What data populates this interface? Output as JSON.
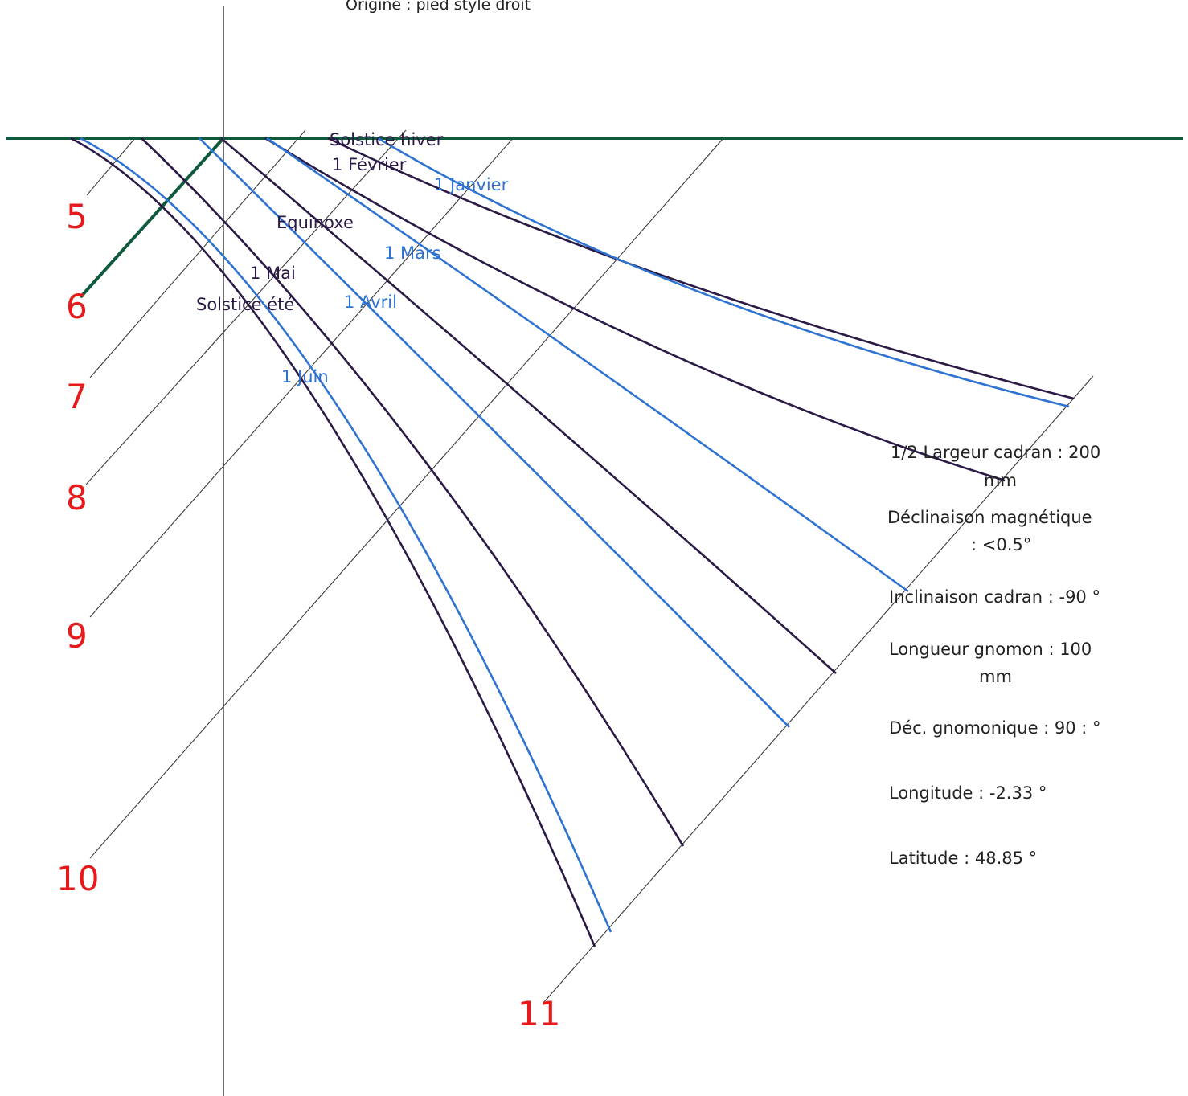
{
  "origin_note": "Origine : pied style droit",
  "colors": {
    "hour_numbers": "#e8191b",
    "hour_lines": "#3a3a3a",
    "style": "#0f5a3c",
    "curve_dark": "#2a1a45",
    "curve_blue": "#2f73d2"
  },
  "hour_numbers": [
    "5",
    "6",
    "7",
    "8",
    "9",
    "10",
    "11"
  ],
  "curve_labels": {
    "solstice_hiver": "Solstice hiver",
    "fevrier": "1 Février",
    "janvier": "1 Janvier",
    "equinoxe": "Equinoxe",
    "mars": "1 Mars",
    "mai": "1 Mai",
    "avril": "1 Avril",
    "solstice_ete": "Solstice été",
    "juin": "1 Juin"
  },
  "info": {
    "half_width_line1": "1/2 Largeur cadran : 200",
    "half_width_line2": "mm",
    "declinaison_mag_line1": "Déclinaison magnétique",
    "declinaison_mag_line2": ": <0.5°",
    "inclinaison": "Inclinaison cadran : -90 °",
    "gnomon_line1": "Longueur gnomon : 100",
    "gnomon_line2": "mm",
    "dec_gnomonique": "Déc. gnomonique  : 90 : °",
    "longitude": "Longitude : -2.33 °",
    "latitude": "Latitude : 48.85 °"
  }
}
